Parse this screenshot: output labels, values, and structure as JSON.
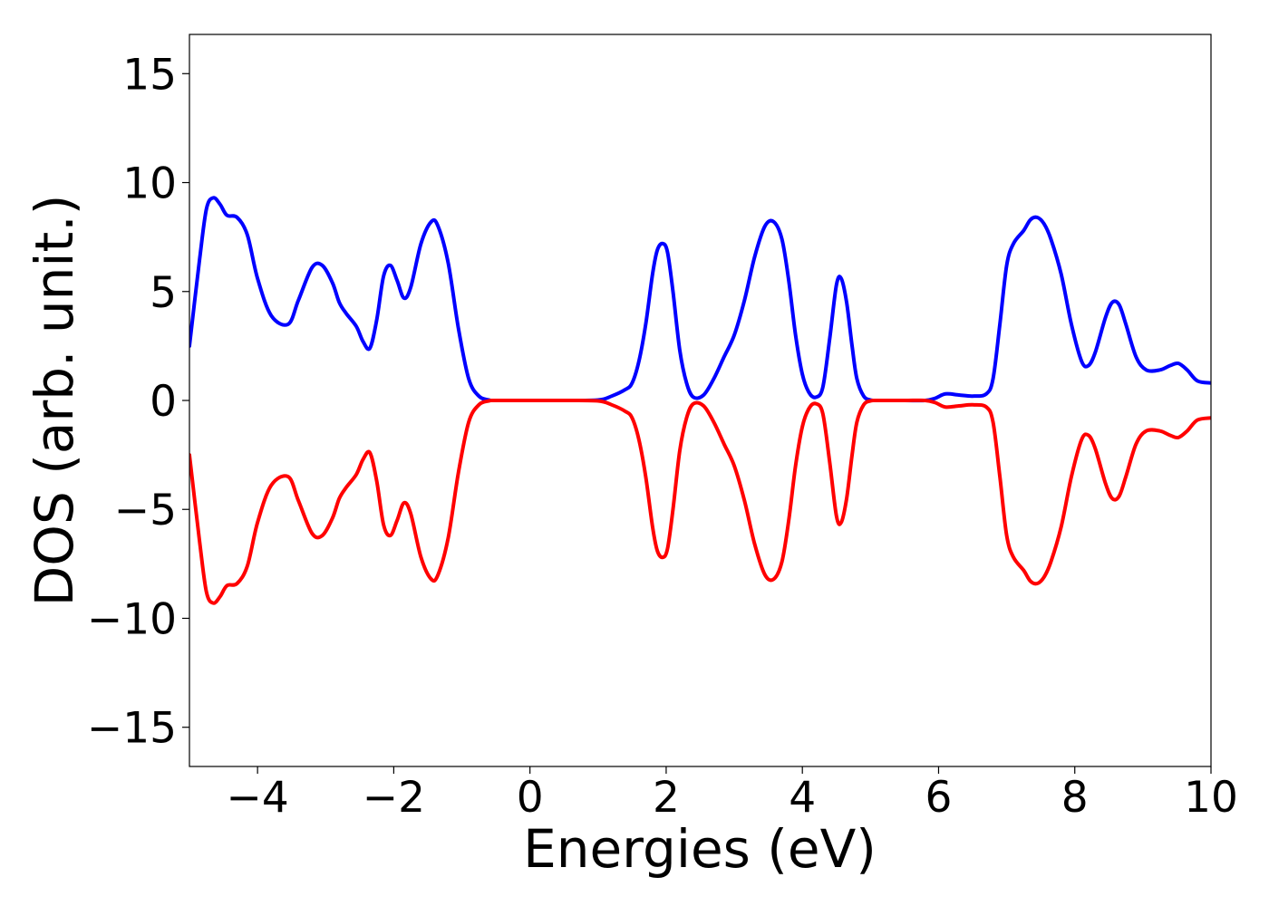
{
  "chart_data": {
    "type": "line",
    "title": "",
    "xlabel": "Energies (eV)",
    "ylabel": "DOS (arb. unit.)",
    "xlim": [
      -5,
      10
    ],
    "ylim": [
      -16.8,
      16.8
    ],
    "xticks": [
      -4,
      -2,
      0,
      2,
      4,
      6,
      8,
      10
    ],
    "yticks": [
      -15,
      -10,
      -5,
      0,
      5,
      10,
      15
    ],
    "xtick_labels": [
      "−4",
      "−2",
      "0",
      "2",
      "4",
      "6",
      "8",
      "10"
    ],
    "ytick_labels": [
      "−15",
      "−10",
      "−5",
      "0",
      "5",
      "10",
      "15"
    ],
    "grid": false,
    "series": [
      {
        "color": "#0000ff",
        "x": [
          -5.0,
          -4.85,
          -4.75,
          -4.65,
          -4.55,
          -4.45,
          -4.3,
          -4.15,
          -4.0,
          -3.8,
          -3.55,
          -3.4,
          -3.2,
          -3.05,
          -2.9,
          -2.8,
          -2.7,
          -2.55,
          -2.45,
          -2.35,
          -2.25,
          -2.15,
          -2.05,
          -1.95,
          -1.85,
          -1.75,
          -1.6,
          -1.45,
          -1.35,
          -1.2,
          -1.05,
          -0.9,
          -0.75,
          -0.6,
          -0.5,
          0.0,
          0.5,
          1.0,
          1.2,
          1.4,
          1.5,
          1.6,
          1.7,
          1.8,
          1.87,
          1.95,
          2.02,
          2.1,
          2.2,
          2.3,
          2.4,
          2.55,
          2.7,
          2.85,
          3.0,
          3.15,
          3.3,
          3.45,
          3.58,
          3.7,
          3.8,
          3.9,
          4.0,
          4.1,
          4.2,
          4.3,
          4.4,
          4.5,
          4.57,
          4.65,
          4.73,
          4.8,
          4.9,
          5.0,
          5.1,
          5.5,
          5.8,
          5.95,
          6.1,
          6.3,
          6.5,
          6.7,
          6.8,
          6.9,
          7.0,
          7.1,
          7.25,
          7.35,
          7.45,
          7.55,
          7.65,
          7.8,
          7.95,
          8.1,
          8.2,
          8.3,
          8.45,
          8.55,
          8.65,
          8.75,
          8.9,
          9.05,
          9.25,
          9.4,
          9.52,
          9.65,
          9.8,
          10.0
        ],
        "y": [
          2.5,
          6.5,
          8.8,
          9.3,
          9.0,
          8.5,
          8.4,
          7.6,
          5.6,
          3.9,
          3.5,
          4.6,
          6.1,
          6.2,
          5.4,
          4.5,
          4.0,
          3.4,
          2.7,
          2.4,
          3.7,
          5.7,
          6.2,
          5.5,
          4.7,
          5.2,
          7.2,
          8.2,
          8.0,
          6.3,
          3.3,
          1.0,
          0.2,
          0.02,
          0.0,
          0.0,
          0.0,
          0.02,
          0.2,
          0.5,
          0.8,
          1.8,
          3.5,
          5.8,
          6.9,
          7.2,
          6.8,
          5.0,
          2.3,
          0.8,
          0.15,
          0.25,
          1.0,
          2.0,
          3.0,
          4.6,
          6.6,
          8.0,
          8.2,
          7.4,
          5.5,
          3.0,
          1.2,
          0.35,
          0.15,
          0.6,
          2.8,
          5.3,
          5.6,
          4.5,
          2.5,
          1.0,
          0.2,
          0.02,
          0.0,
          0.0,
          0.0,
          0.1,
          0.3,
          0.25,
          0.2,
          0.3,
          1.0,
          3.5,
          6.2,
          7.2,
          7.8,
          8.3,
          8.4,
          8.1,
          7.4,
          5.8,
          3.5,
          1.8,
          1.6,
          2.2,
          3.8,
          4.5,
          4.4,
          3.5,
          2.0,
          1.4,
          1.4,
          1.6,
          1.7,
          1.4,
          0.9,
          0.8
        ]
      },
      {
        "color": "#ff0000",
        "x": [
          -5.0,
          -4.85,
          -4.75,
          -4.65,
          -4.55,
          -4.45,
          -4.3,
          -4.15,
          -4.0,
          -3.8,
          -3.55,
          -3.4,
          -3.2,
          -3.05,
          -2.9,
          -2.8,
          -2.7,
          -2.55,
          -2.45,
          -2.35,
          -2.25,
          -2.15,
          -2.05,
          -1.95,
          -1.85,
          -1.75,
          -1.6,
          -1.45,
          -1.35,
          -1.2,
          -1.05,
          -0.9,
          -0.75,
          -0.6,
          -0.5,
          0.0,
          0.5,
          1.0,
          1.2,
          1.4,
          1.5,
          1.6,
          1.7,
          1.8,
          1.87,
          1.95,
          2.02,
          2.1,
          2.2,
          2.3,
          2.4,
          2.55,
          2.7,
          2.85,
          3.0,
          3.15,
          3.3,
          3.45,
          3.58,
          3.7,
          3.8,
          3.9,
          4.0,
          4.1,
          4.2,
          4.3,
          4.4,
          4.5,
          4.57,
          4.65,
          4.73,
          4.8,
          4.9,
          5.0,
          5.1,
          5.5,
          5.8,
          5.95,
          6.1,
          6.3,
          6.5,
          6.7,
          6.8,
          6.9,
          7.0,
          7.1,
          7.25,
          7.35,
          7.45,
          7.55,
          7.65,
          7.8,
          7.95,
          8.1,
          8.2,
          8.3,
          8.45,
          8.55,
          8.65,
          8.75,
          8.9,
          9.05,
          9.25,
          9.4,
          9.52,
          9.65,
          9.8,
          10.0
        ],
        "y": [
          -2.5,
          -6.5,
          -8.8,
          -9.3,
          -9.0,
          -8.5,
          -8.4,
          -7.6,
          -5.6,
          -3.9,
          -3.5,
          -4.6,
          -6.1,
          -6.2,
          -5.4,
          -4.5,
          -4.0,
          -3.4,
          -2.7,
          -2.4,
          -3.7,
          -5.7,
          -6.2,
          -5.5,
          -4.7,
          -5.2,
          -7.2,
          -8.2,
          -8.0,
          -6.3,
          -3.3,
          -1.0,
          -0.2,
          -0.02,
          0.0,
          0.0,
          0.0,
          -0.02,
          -0.2,
          -0.5,
          -0.8,
          -1.8,
          -3.5,
          -5.8,
          -6.9,
          -7.2,
          -6.8,
          -5.0,
          -2.3,
          -0.8,
          -0.15,
          -0.25,
          -1.0,
          -2.0,
          -3.0,
          -4.6,
          -6.6,
          -8.0,
          -8.2,
          -7.4,
          -5.5,
          -3.0,
          -1.2,
          -0.35,
          -0.15,
          -0.6,
          -2.8,
          -5.3,
          -5.6,
          -4.5,
          -2.5,
          -1.0,
          -0.2,
          -0.02,
          0.0,
          0.0,
          0.0,
          -0.1,
          -0.3,
          -0.25,
          -0.2,
          -0.3,
          -1.0,
          -3.5,
          -6.2,
          -7.2,
          -7.8,
          -8.3,
          -8.4,
          -8.1,
          -7.4,
          -5.8,
          -3.5,
          -1.8,
          -1.6,
          -2.2,
          -3.8,
          -4.5,
          -4.4,
          -3.5,
          -2.0,
          -1.4,
          -1.4,
          -1.6,
          -1.7,
          -1.4,
          -0.9,
          -0.8
        ]
      }
    ]
  }
}
